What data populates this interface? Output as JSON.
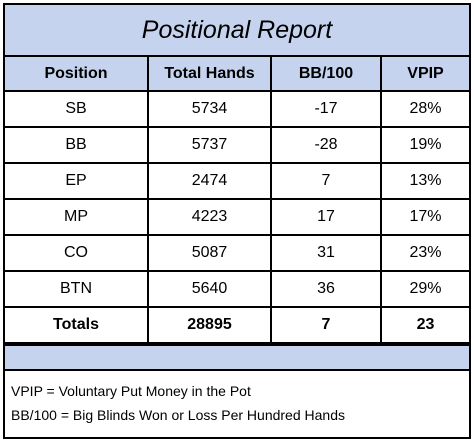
{
  "report": {
    "title": "Positional Report",
    "columns": [
      "Position",
      "Total Hands",
      "BB/100",
      "VPIP"
    ],
    "rows": [
      {
        "position": "SB",
        "total_hands": "5734",
        "bb100": "-17",
        "vpip": "28%"
      },
      {
        "position": "BB",
        "total_hands": "5737",
        "bb100": "-28",
        "vpip": "19%"
      },
      {
        "position": "EP",
        "total_hands": "2474",
        "bb100": "7",
        "vpip": "13%"
      },
      {
        "position": "MP",
        "total_hands": "4223",
        "bb100": "17",
        "vpip": "17%"
      },
      {
        "position": "CO",
        "total_hands": "5087",
        "bb100": "31",
        "vpip": "23%"
      },
      {
        "position": "BTN",
        "total_hands": "5640",
        "bb100": "36",
        "vpip": "29%"
      }
    ],
    "totals": {
      "label": "Totals",
      "total_hands": "28895",
      "bb100": "7",
      "vpip": "23"
    },
    "notes": [
      "VPIP = Voluntary Put Money in the Pot",
      "BB/100 = Big Blinds Won or Loss Per Hundred Hands"
    ]
  },
  "colors": {
    "header_fill": "#c5d3ee",
    "border": "#000000"
  }
}
